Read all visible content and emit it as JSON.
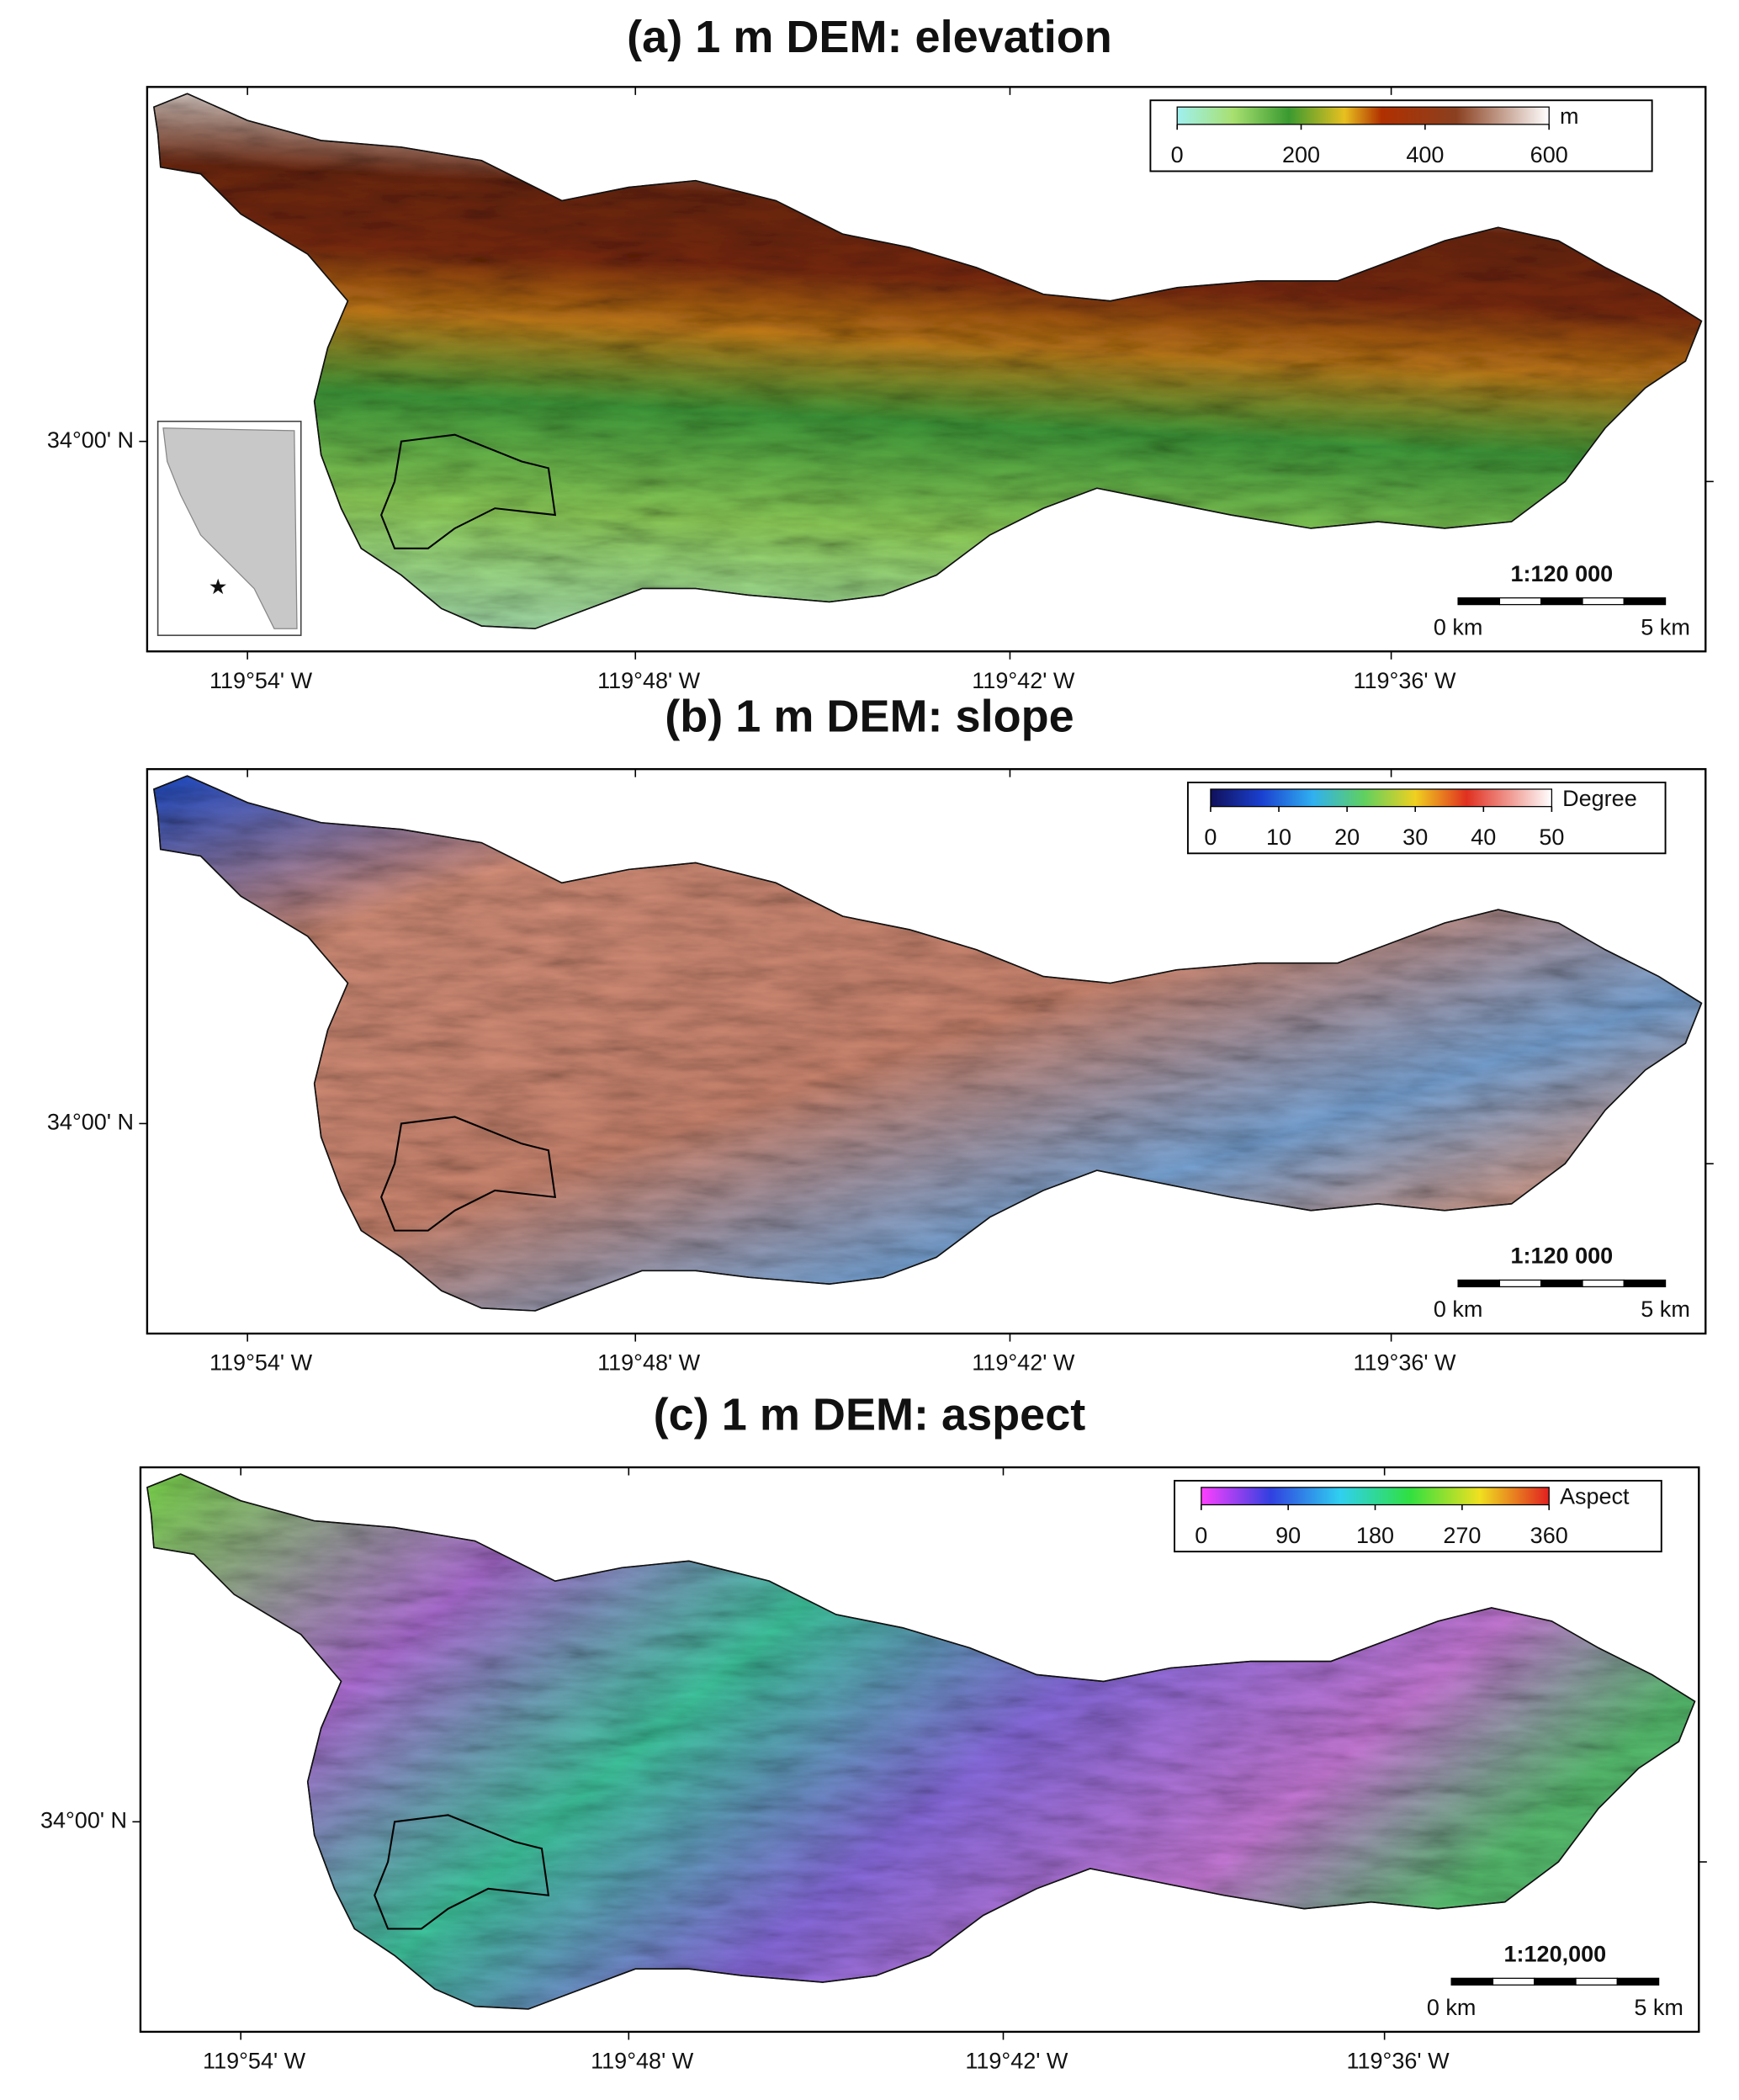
{
  "panels": [
    {
      "title": "(a)   1 m DEM: elevation",
      "colorbar_label": "m",
      "colorbar_ticks": [
        0,
        200,
        400,
        600
      ],
      "scale_ratio": "1:120 000",
      "scale_start": "0 km",
      "scale_end": "5 km",
      "lat_label": "34°00' N",
      "lon_labels": [
        "119°54' W",
        "119°48' W",
        "119°42' W",
        "119°36' W"
      ]
    },
    {
      "title": "(b) 1 m DEM: slope",
      "colorbar_label": "Degree",
      "colorbar_ticks": [
        0,
        10,
        20,
        30,
        40,
        50
      ],
      "scale_ratio": "1:120 000",
      "scale_start": "0 km",
      "scale_end": "5 km",
      "lat_label": "34°00' N",
      "lon_labels": [
        "119°54' W",
        "119°48' W",
        "119°42' W",
        "119°36' W"
      ]
    },
    {
      "title": "(c) 1 m DEM: aspect",
      "colorbar_label": "Aspect",
      "colorbar_ticks": [
        0,
        90,
        180,
        270,
        360
      ],
      "scale_ratio": "1:120,000",
      "scale_start": "0 km",
      "scale_end": "5 km",
      "lat_label": "34°00' N",
      "lon_labels": [
        "119°54' W",
        "119°48' W",
        "119°42' W",
        "119°36' W"
      ]
    }
  ]
}
